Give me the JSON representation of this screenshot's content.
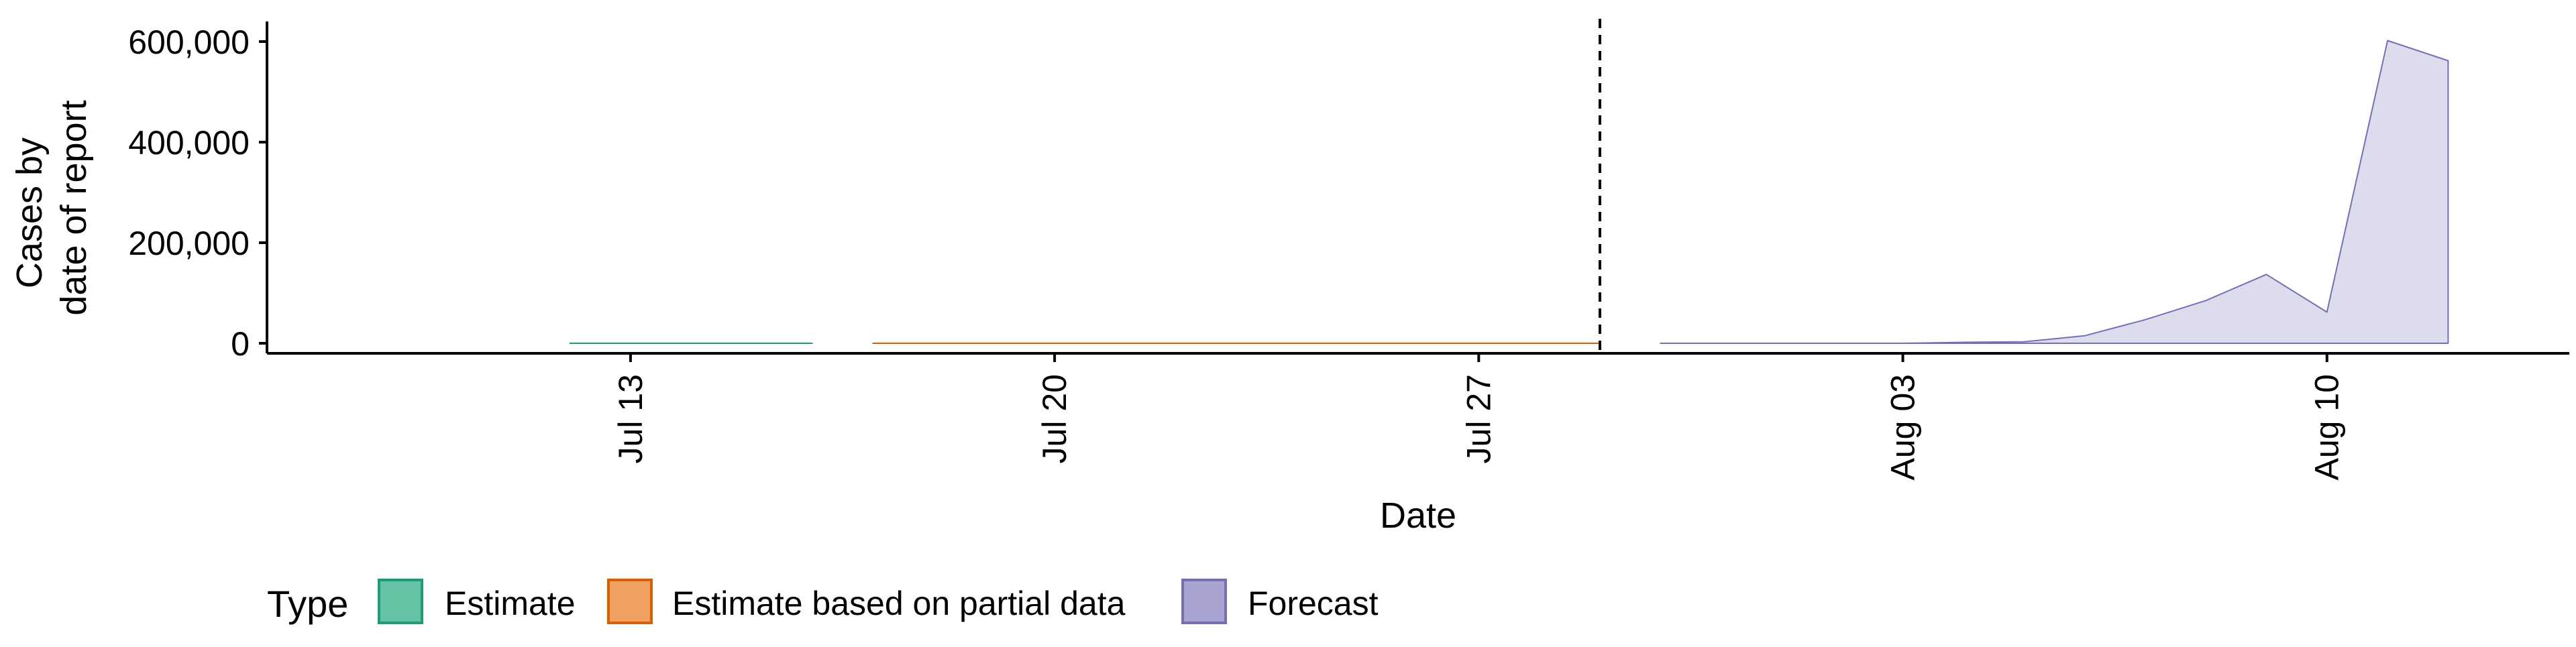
{
  "chart_data": {
    "type": "area",
    "xlabel": "Date",
    "ylabel_lines": [
      "Cases by",
      "date of report"
    ],
    "ylim": [
      -20000,
      640000
    ],
    "xlim": [
      "2020-07-07",
      "2020-08-14"
    ],
    "y_ticks": [
      {
        "value": 0,
        "label": "0"
      },
      {
        "value": 200000,
        "label": "200,000"
      },
      {
        "value": 400000,
        "label": "400,000"
      },
      {
        "value": 600000,
        "label": "600,000"
      }
    ],
    "x_ticks": [
      {
        "date": "2020-07-13",
        "label": "Jul 13"
      },
      {
        "date": "2020-07-20",
        "label": "Jul 20"
      },
      {
        "date": "2020-07-27",
        "label": "Jul 27"
      },
      {
        "date": "2020-08-03",
        "label": "Aug 03"
      },
      {
        "date": "2020-08-10",
        "label": "Aug 10"
      }
    ],
    "reference_line": {
      "date": "2020-07-29",
      "style": "dashed"
    },
    "legend": {
      "title": "Type",
      "position": "bottom",
      "items": [
        {
          "label": "Estimate",
          "fill": "#66C2A5",
          "stroke": "#1B9E77"
        },
        {
          "label": "Estimate based on partial data",
          "fill": "#F0A060",
          "stroke": "#D95F02"
        },
        {
          "label": "Forecast",
          "fill": "#A9A3D2",
          "stroke": "#7570B3"
        }
      ]
    },
    "series": [
      {
        "name": "Estimate",
        "color": "#1B9E77",
        "fill": "#C7E8DD",
        "x": [
          "2020-07-12",
          "2020-07-13",
          "2020-07-14",
          "2020-07-15",
          "2020-07-16"
        ],
        "lower": [
          0,
          0,
          0,
          0,
          0
        ],
        "upper": [
          0,
          0,
          0,
          0,
          0
        ]
      },
      {
        "name": "Estimate based on partial data",
        "color": "#D95F02",
        "fill": "#F4D0B0",
        "x": [
          "2020-07-17",
          "2020-07-18",
          "2020-07-19",
          "2020-07-20",
          "2020-07-21",
          "2020-07-22",
          "2020-07-23",
          "2020-07-24",
          "2020-07-25",
          "2020-07-26",
          "2020-07-27",
          "2020-07-28",
          "2020-07-29"
        ],
        "lower": [
          0,
          0,
          0,
          0,
          0,
          0,
          0,
          0,
          0,
          0,
          0,
          0,
          0
        ],
        "upper": [
          0,
          0,
          0,
          0,
          0,
          0,
          0,
          0,
          0,
          0,
          0,
          0,
          0
        ]
      },
      {
        "name": "Forecast",
        "color": "#7570B3",
        "fill": "#DDDCEC",
        "x": [
          "2020-07-30",
          "2020-07-31",
          "2020-08-01",
          "2020-08-02",
          "2020-08-03",
          "2020-08-04",
          "2020-08-05",
          "2020-08-06",
          "2020-08-07",
          "2020-08-08",
          "2020-08-09",
          "2020-08-10",
          "2020-08-11",
          "2020-08-12"
        ],
        "lower": [
          0,
          0,
          0,
          0,
          0,
          0,
          0,
          0,
          0,
          0,
          0,
          0,
          0,
          0
        ],
        "upper": [
          0,
          0,
          0,
          0,
          0,
          2000,
          3000,
          15000,
          47000,
          85000,
          137000,
          62000,
          602000,
          562000
        ]
      }
    ]
  }
}
